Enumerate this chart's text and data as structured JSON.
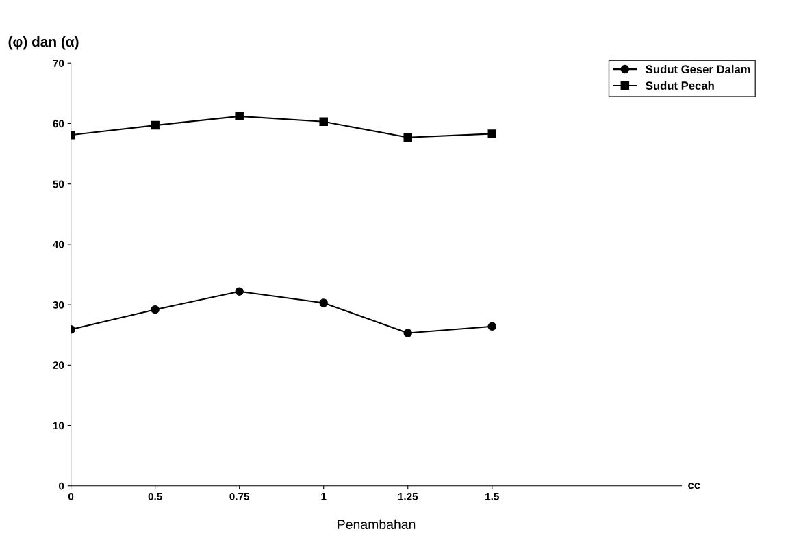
{
  "chart_data": {
    "type": "line",
    "ylabel": "(φ) dan (α)",
    "xlabel": "Penambahan",
    "annotations": [
      "cc"
    ],
    "categories": [
      "0",
      "0.5",
      "0.75",
      "1",
      "1.25",
      "1.5"
    ],
    "series": [
      {
        "name": "Sudut Geser Dalam",
        "color": "#000000",
        "marker": "circle",
        "values": [
          25.9,
          29.2,
          32.2,
          30.3,
          25.3,
          26.4
        ]
      },
      {
        "name": "Sudut Pecah",
        "color": "#000000",
        "marker": "square",
        "values": [
          58.1,
          59.7,
          61.2,
          60.3,
          57.7,
          58.3
        ]
      }
    ],
    "ylim": [
      0,
      70
    ],
    "yticks": [
      0,
      10,
      20,
      30,
      40,
      50,
      60,
      70
    ],
    "grid": false,
    "legend": "top right",
    "line_style": "solid"
  }
}
